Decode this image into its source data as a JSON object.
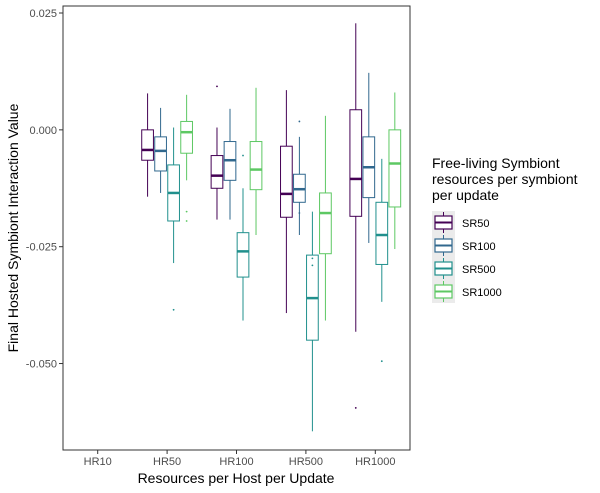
{
  "chart_data": {
    "type": "boxplot",
    "title": "",
    "xlabel": "Resources per Host per Update",
    "ylabel": "Final Hosted Symbiont Interaction Value",
    "categories": [
      "HR10",
      "HR50",
      "HR100",
      "HR500",
      "HR1000"
    ],
    "ylim": [
      -0.0685,
      0.0265
    ],
    "yticks": [
      0.025,
      0.0,
      -0.025,
      -0.05
    ],
    "ytick_labels": [
      "0.025",
      "0.000",
      "-0.025",
      "-0.050"
    ],
    "grid": false,
    "legend": {
      "title_lines": [
        "Free-living Symbiont",
        "resources per symbiont",
        " per update"
      ],
      "position": "right"
    },
    "series": [
      {
        "name": "SR50",
        "color": "#440154",
        "boxes": [
          null,
          {
            "min": -0.0143,
            "q1": -0.0065,
            "median": -0.0043,
            "q3": 0.0,
            "max": 0.0078,
            "outliers": []
          },
          {
            "min": -0.0192,
            "q1": -0.0125,
            "median": -0.0098,
            "q3": -0.0055,
            "max": 0.0005,
            "outliers": [
              0.0093
            ]
          },
          {
            "min": -0.0392,
            "q1": -0.0187,
            "median": -0.0137,
            "q3": -0.0035,
            "max": 0.0085,
            "outliers": []
          },
          {
            "min": -0.0432,
            "q1": -0.0185,
            "median": -0.0105,
            "q3": 0.0043,
            "max": 0.0228,
            "outliers": [
              -0.0595
            ]
          }
        ]
      },
      {
        "name": "SR100",
        "color": "#31688e",
        "boxes": [
          null,
          {
            "min": -0.0135,
            "q1": -0.0088,
            "median": -0.0045,
            "q3": -0.0015,
            "max": 0.0047,
            "outliers": []
          },
          {
            "min": -0.0192,
            "q1": -0.0108,
            "median": -0.0065,
            "q3": -0.0025,
            "max": 0.0045,
            "outliers": []
          },
          {
            "min": -0.0225,
            "q1": -0.0155,
            "median": -0.0127,
            "q3": -0.0095,
            "max": -0.0015,
            "outliers": [
              0.0018,
              -0.0178
            ]
          },
          {
            "min": -0.0242,
            "q1": -0.0145,
            "median": -0.008,
            "q3": -0.0015,
            "max": 0.0122,
            "outliers": []
          }
        ]
      },
      {
        "name": "SR500",
        "color": "#21908d",
        "boxes": [
          null,
          {
            "min": -0.0285,
            "q1": -0.0195,
            "median": -0.0135,
            "q3": -0.0075,
            "max": 0.0005,
            "outliers": [
              -0.0385
            ]
          },
          {
            "min": -0.0408,
            "q1": -0.0315,
            "median": -0.026,
            "q3": -0.022,
            "max": -0.0125,
            "outliers": [
              -0.0055
            ]
          },
          {
            "min": -0.0645,
            "q1": -0.045,
            "median": -0.036,
            "q3": -0.0268,
            "max": -0.0175,
            "outliers": [
              -0.0275,
              -0.029
            ]
          },
          {
            "min": -0.0368,
            "q1": -0.0288,
            "median": -0.0225,
            "q3": -0.0155,
            "max": -0.0062,
            "outliers": [
              -0.0495
            ]
          }
        ]
      },
      {
        "name": "SR1000",
        "color": "#5dc863",
        "boxes": [
          null,
          {
            "min": -0.0108,
            "q1": -0.005,
            "median": -0.0005,
            "q3": 0.0018,
            "max": 0.0075,
            "outliers": [
              -0.0175,
              -0.0195
            ]
          },
          {
            "min": -0.0225,
            "q1": -0.0128,
            "median": -0.0085,
            "q3": -0.0025,
            "max": 0.009,
            "outliers": []
          },
          {
            "min": -0.0408,
            "q1": -0.0265,
            "median": -0.0178,
            "q3": -0.0135,
            "max": 0.003,
            "outliers": []
          },
          {
            "min": -0.0255,
            "q1": -0.0165,
            "median": -0.0072,
            "q3": 0.0,
            "max": 0.008,
            "outliers": []
          }
        ]
      }
    ]
  }
}
